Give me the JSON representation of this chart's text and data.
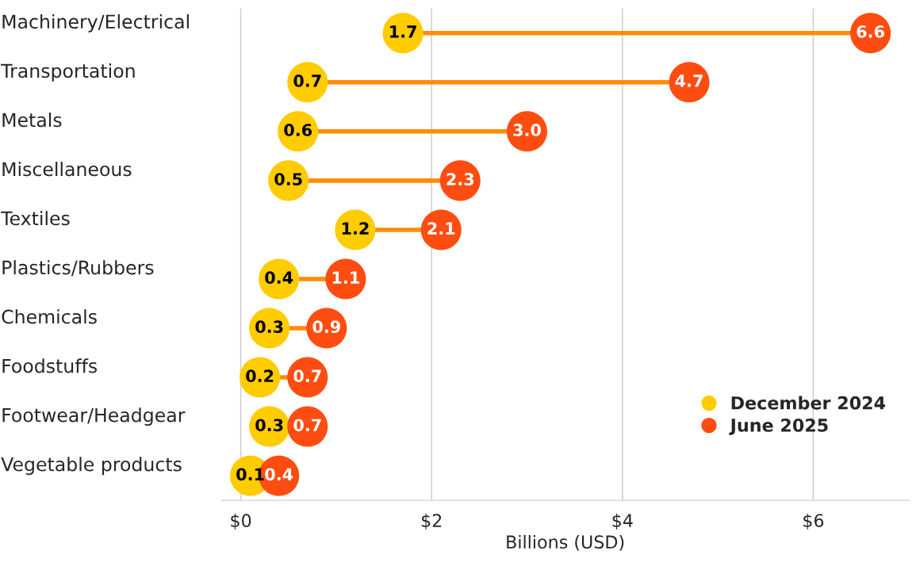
{
  "chart_data": {
    "type": "scatter",
    "orientation": "horizontal",
    "categories": [
      "Machinery/Electrical",
      "Transportation",
      "Metals",
      "Miscellaneous",
      "Textiles",
      "Plastics/Rubbers",
      "Chemicals",
      "Foodstuffs",
      "Footwear/Headgear",
      "Vegetable products"
    ],
    "series": [
      {
        "name": "December 2024",
        "color": "#ffcc00",
        "values": [
          1.7,
          0.7,
          0.6,
          0.5,
          1.2,
          0.4,
          0.3,
          0.2,
          0.3,
          0.1
        ],
        "value_labels": [
          "1.7",
          "0.7",
          "0.6",
          "0.5",
          "1.2",
          "0.4",
          "0.3",
          "0.2",
          "0.3",
          "0.1"
        ]
      },
      {
        "name": "June 2025",
        "color": "#ff4d12",
        "values": [
          6.6,
          4.7,
          3.0,
          2.3,
          2.1,
          1.1,
          0.9,
          0.7,
          0.7,
          0.4
        ],
        "value_labels": [
          "6.6",
          "4.7",
          "3.0",
          "2.3",
          "2.1",
          "1.1",
          "0.9",
          "0.7",
          "0.7",
          "0.4"
        ]
      }
    ],
    "xlabel": "Billions (USD)",
    "xlim": [
      -0.2,
      7.0
    ],
    "xticks": [
      {
        "value": 0,
        "label": "$0"
      },
      {
        "value": 2,
        "label": "$2"
      },
      {
        "value": 4,
        "label": "$4"
      },
      {
        "value": 6,
        "label": "$6"
      }
    ],
    "grid": "x",
    "legend": "bottom right",
    "marker": "circle"
  }
}
